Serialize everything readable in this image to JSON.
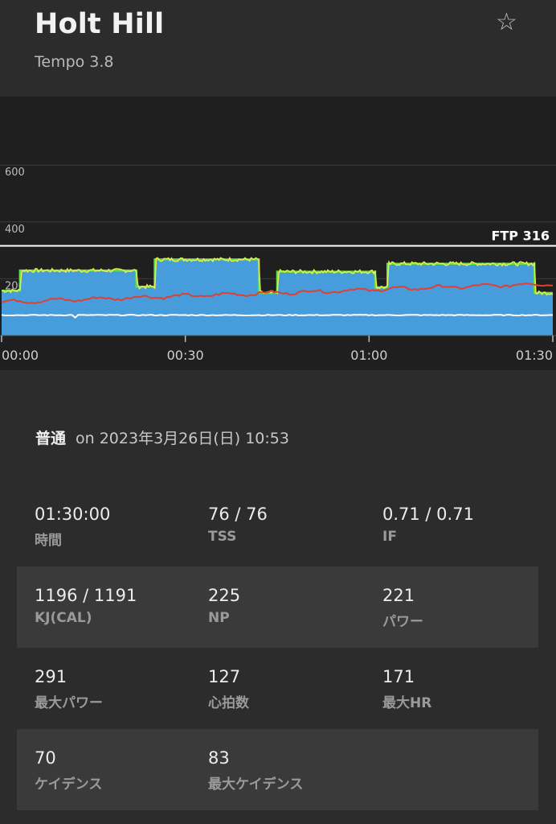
{
  "header": {
    "title": "Holt Hill",
    "subtitle": "Tempo 3.8",
    "favorite_icon": "star-icon"
  },
  "chart_data": {
    "type": "area",
    "ylim": [
      0,
      700
    ],
    "yticks": [
      "600",
      "400",
      "200"
    ],
    "xticks": [
      "00:00",
      "00:30",
      "01:00",
      "01:30"
    ],
    "ftp_label": "FTP 316",
    "ftp_value": 316,
    "target_segments": [
      {
        "start_min": 0,
        "end_min": 3,
        "watts": 158
      },
      {
        "start_min": 3,
        "end_min": 22,
        "watts": 229
      },
      {
        "start_min": 22,
        "end_min": 25,
        "watts": 172
      },
      {
        "start_min": 25,
        "end_min": 42,
        "watts": 268
      },
      {
        "start_min": 42,
        "end_min": 45,
        "watts": 150
      },
      {
        "start_min": 45,
        "end_min": 61,
        "watts": 225
      },
      {
        "start_min": 61,
        "end_min": 63,
        "watts": 170
      },
      {
        "start_min": 63,
        "end_min": 87,
        "watts": 253
      },
      {
        "start_min": 87,
        "end_min": 90,
        "watts": 150
      }
    ],
    "series": [
      {
        "name": "power",
        "color": "#e8ef4a"
      },
      {
        "name": "heart_rate",
        "color": "#e0402f"
      },
      {
        "name": "cadence",
        "color": "#ffffff"
      }
    ],
    "colors": {
      "target_fill": "#4aa3e6",
      "target_line": "#5fe04a",
      "ftp_line": "#ffffff"
    }
  },
  "workout_meta": {
    "difficulty": "普通",
    "date_text": "on 2023年3月26日(日) 10:53"
  },
  "stats": [
    [
      {
        "value": "01:30:00",
        "label": "時間"
      },
      {
        "value": "76 / 76",
        "label": "TSS"
      },
      {
        "value": "0.71 / 0.71",
        "label": "IF"
      }
    ],
    [
      {
        "value": "1196 / 1191",
        "label": "KJ(CAL)"
      },
      {
        "value": "225",
        "label": "NP"
      },
      {
        "value": "221",
        "label": "パワー"
      }
    ],
    [
      {
        "value": "291",
        "label": "最大パワー"
      },
      {
        "value": "127",
        "label": "心拍数"
      },
      {
        "value": "171",
        "label": "最大HR"
      }
    ],
    [
      {
        "value": "70",
        "label": "ケイデンス"
      },
      {
        "value": "83",
        "label": "最大ケイデンス"
      }
    ]
  ]
}
